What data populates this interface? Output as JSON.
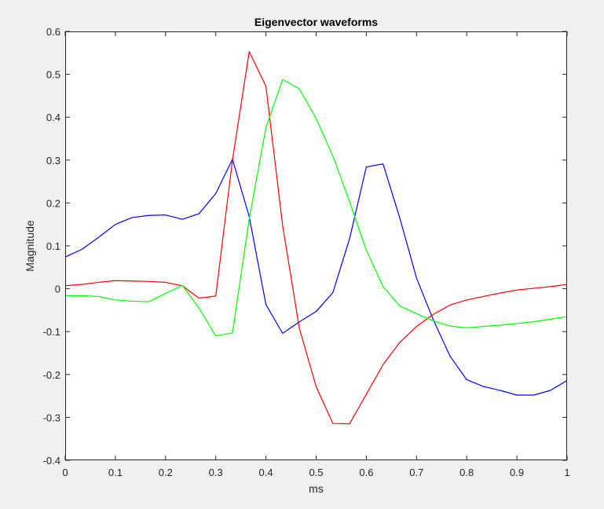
{
  "chart_data": {
    "type": "line",
    "title": "Eigenvector waveforms",
    "xlabel": "ms",
    "ylabel": "Magnitude",
    "xlim": [
      0,
      1
    ],
    "ylim": [
      -0.4,
      0.6
    ],
    "xticks": [
      0,
      0.1,
      0.2,
      0.3,
      0.4,
      0.5,
      0.6,
      0.7,
      0.8,
      0.9,
      1
    ],
    "xtick_labels": [
      "0",
      "0.1",
      "0.2",
      "0.3",
      "0.4",
      "0.5",
      "0.6",
      "0.7",
      "0.8",
      "0.9",
      "1"
    ],
    "yticks": [
      -0.4,
      -0.3,
      -0.2,
      -0.1,
      0,
      0.1,
      0.2,
      0.3,
      0.4,
      0.5,
      0.6
    ],
    "ytick_labels": [
      "-0.4",
      "-0.3",
      "-0.2",
      "-0.1",
      "0",
      "0.1",
      "0.2",
      "0.3",
      "0.4",
      "0.5",
      "0.6"
    ],
    "grid": false,
    "x": [
      0,
      0.0333,
      0.0667,
      0.1,
      0.1333,
      0.1667,
      0.2,
      0.2333,
      0.2667,
      0.3,
      0.3333,
      0.3667,
      0.4,
      0.4333,
      0.4667,
      0.5,
      0.5333,
      0.5667,
      0.6,
      0.6333,
      0.6667,
      0.7,
      0.7333,
      0.7667,
      0.8,
      0.8333,
      0.8667,
      0.9,
      0.9333,
      0.9667,
      1
    ],
    "series": [
      {
        "name": "blue",
        "color": "#0000ff",
        "values": [
          0.074,
          0.092,
          0.12,
          0.15,
          0.166,
          0.171,
          0.172,
          0.162,
          0.175,
          0.222,
          0.302,
          0.168,
          -0.037,
          -0.104,
          -0.077,
          -0.053,
          -0.009,
          0.117,
          0.284,
          0.291,
          0.165,
          0.025,
          -0.072,
          -0.157,
          -0.212,
          -0.228,
          -0.237,
          -0.248,
          -0.248,
          -0.237,
          -0.214
        ]
      },
      {
        "name": "red",
        "color": "#ff0000",
        "values": [
          0.007,
          0.01,
          0.015,
          0.019,
          0.018,
          0.017,
          0.015,
          0.007,
          -0.022,
          -0.017,
          0.3,
          0.553,
          0.472,
          0.147,
          -0.093,
          -0.228,
          -0.314,
          -0.315,
          -0.246,
          -0.177,
          -0.125,
          -0.088,
          -0.06,
          -0.038,
          -0.026,
          -0.018,
          -0.01,
          -0.003,
          0.001,
          0.005,
          0.01
        ]
      },
      {
        "name": "green",
        "color": "#00ff00",
        "values": [
          -0.016,
          -0.016,
          -0.018,
          -0.026,
          -0.029,
          -0.03,
          -0.011,
          0.008,
          -0.045,
          -0.11,
          -0.103,
          0.163,
          0.376,
          0.488,
          0.466,
          0.397,
          0.31,
          0.203,
          0.09,
          0.005,
          -0.04,
          -0.058,
          -0.075,
          -0.087,
          -0.091,
          -0.088,
          -0.085,
          -0.081,
          -0.077,
          -0.071,
          -0.065
        ]
      }
    ]
  }
}
